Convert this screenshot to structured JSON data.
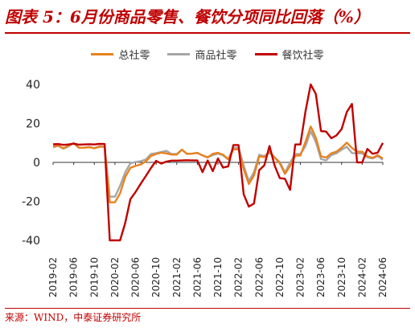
{
  "title": "图表 5：6月份商品零售、餐饮分项同比回落（%）",
  "source": "来源：WIND，中泰证券研究所",
  "colors": {
    "total": "#e8821e",
    "goods": "#a6a6a6",
    "catering": "#c00000",
    "title": "#c00000"
  },
  "chart_data": {
    "type": "line",
    "ylim": [
      -40,
      40
    ],
    "yticks": [
      40,
      20,
      0,
      -20,
      -40
    ],
    "xtick_labels": [
      "2019-02",
      "2019-06",
      "2019-10",
      "2020-02",
      "2020-06",
      "2020-10",
      "2021-02",
      "2021-06",
      "2021-10",
      "2022-02",
      "2022-06",
      "2022-10",
      "2023-02",
      "2023-06",
      "2023-10",
      "2024-02",
      "2024-06"
    ],
    "x": [
      "2019-02",
      "2019-03",
      "2019-04",
      "2019-05",
      "2019-06",
      "2019-07",
      "2019-08",
      "2019-09",
      "2019-10",
      "2019-11",
      "2019-12",
      "2020-01",
      "2020-02",
      "2020-03",
      "2020-04",
      "2020-05",
      "2020-06",
      "2020-07",
      "2020-08",
      "2020-09",
      "2020-10",
      "2020-11",
      "2020-12",
      "2021-01",
      "2021-02",
      "2021-03",
      "2021-04",
      "2021-05",
      "2021-06",
      "2021-07",
      "2021-08",
      "2021-09",
      "2021-10",
      "2021-11",
      "2021-12",
      "2022-01",
      "2022-02",
      "2022-03",
      "2022-04",
      "2022-05",
      "2022-06",
      "2022-07",
      "2022-08",
      "2022-09",
      "2022-10",
      "2022-11",
      "2022-12",
      "2023-01",
      "2023-02",
      "2023-03",
      "2023-04",
      "2023-05",
      "2023-06",
      "2023-07",
      "2023-08",
      "2023-09",
      "2023-10",
      "2023-11",
      "2023-12",
      "2024-01",
      "2024-02",
      "2024-03",
      "2024-04",
      "2024-05",
      "2024-06"
    ],
    "series": [
      {
        "name": "总社零",
        "key": "total",
        "values": [
          8.2,
          8.7,
          7.2,
          8.6,
          9.8,
          7.6,
          7.5,
          7.8,
          7.2,
          8.0,
          8.0,
          -20.5,
          -20.5,
          -15.8,
          -7.5,
          -2.8,
          -1.8,
          -1.1,
          0.5,
          3.3,
          4.3,
          5.0,
          4.6,
          4.0,
          4.0,
          6.5,
          4.3,
          4.5,
          4.9,
          3.6,
          2.5,
          4.4,
          4.9,
          3.9,
          1.7,
          6.7,
          6.7,
          -3.5,
          -11.1,
          -6.7,
          3.1,
          2.7,
          5.4,
          2.5,
          -0.5,
          -5.9,
          -1.8,
          3.5,
          3.5,
          10.6,
          18.4,
          12.7,
          3.1,
          2.5,
          4.6,
          5.5,
          7.6,
          10.1,
          7.4,
          5.5,
          5.5,
          3.1,
          2.3,
          3.7,
          2.0
        ]
      },
      {
        "name": "商品社零",
        "key": "goods",
        "values": [
          7.7,
          8.5,
          7.0,
          8.2,
          9.9,
          7.5,
          7.6,
          7.9,
          7.4,
          8.2,
          8.1,
          -17.6,
          -17.6,
          -12.0,
          -5.1,
          -0.5,
          0.2,
          0.6,
          1.5,
          4.3,
          4.7,
          5.3,
          5.9,
          4.3,
          4.3,
          6.5,
          4.4,
          4.5,
          4.8,
          3.6,
          2.7,
          3.7,
          4.5,
          3.6,
          1.5,
          7.5,
          7.5,
          -1.6,
          -9.7,
          -5.0,
          3.9,
          3.2,
          5.1,
          2.5,
          0.2,
          -5.2,
          -0.1,
          4.3,
          4.3,
          8.4,
          15.9,
          10.5,
          1.7,
          1.0,
          3.7,
          4.6,
          6.5,
          8.0,
          4.8,
          4.6,
          4.6,
          2.6,
          2.0,
          3.2,
          1.3
        ]
      },
      {
        "name": "餐饮社零",
        "key": "catering",
        "values": [
          9.3,
          9.4,
          9.0,
          9.2,
          9.6,
          9.1,
          9.2,
          9.3,
          9.2,
          9.5,
          9.4,
          -43.1,
          -43.1,
          -46.8,
          -31.1,
          -18.9,
          -15.2,
          -11.0,
          -7.0,
          -2.9,
          0.8,
          -0.6,
          0.4,
          0.9,
          0.9,
          1.0,
          1.1,
          1.0,
          1.0,
          -5.0,
          1.0,
          -4.5,
          2.0,
          -2.7,
          -2.0,
          8.9,
          8.9,
          -16.4,
          -22.7,
          -21.1,
          -4.0,
          -1.5,
          8.4,
          -1.7,
          -8.1,
          -8.4,
          -14.1,
          9.2,
          9.2,
          26.3,
          43.8,
          35.1,
          16.1,
          15.8,
          12.4,
          13.8,
          17.1,
          25.8,
          30.0,
          0.0,
          0.0,
          6.9,
          4.4,
          5.0,
          10.0
        ]
      }
    ]
  }
}
